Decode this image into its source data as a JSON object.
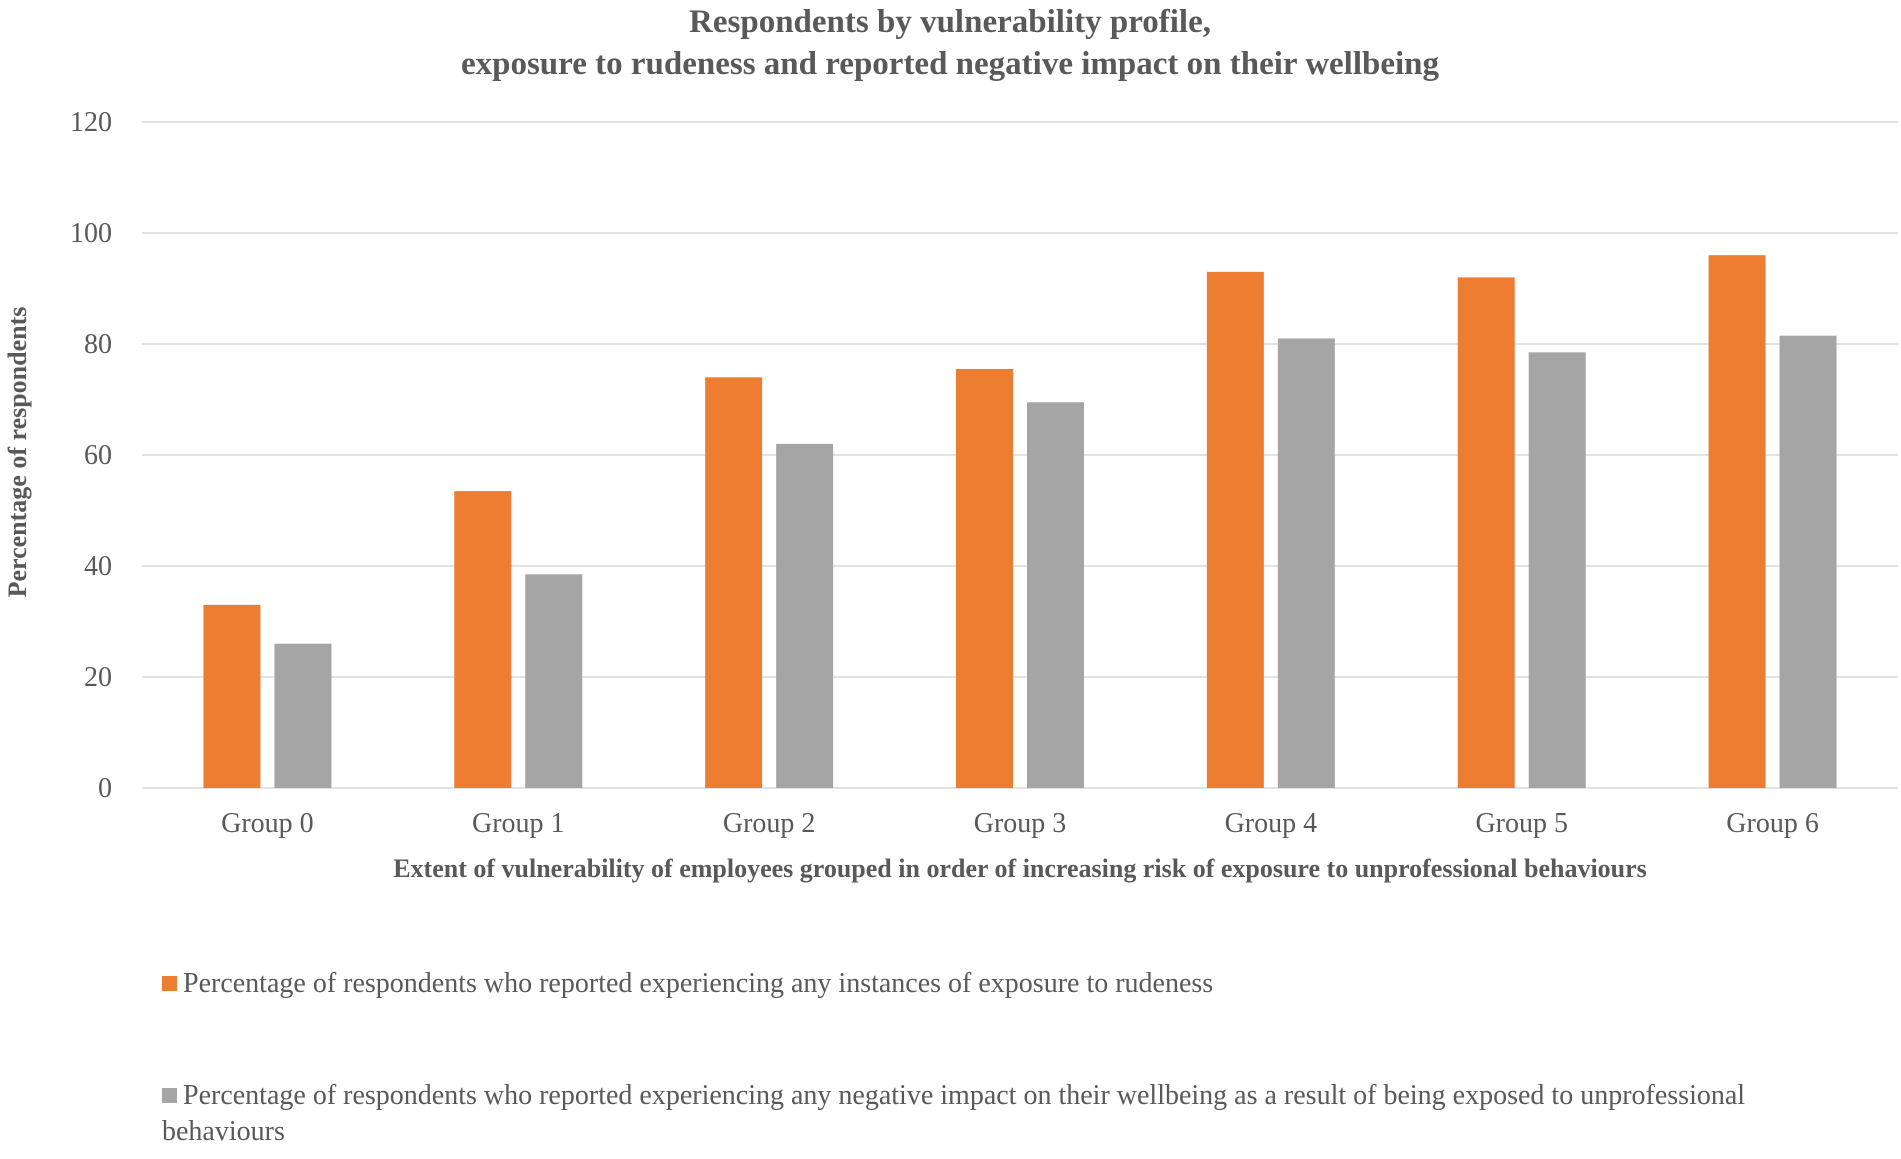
{
  "chart_data": {
    "type": "bar",
    "title_lines": [
      "Respondents by vulnerability profile,",
      "exposure to rudeness and reported negative impact on their wellbeing"
    ],
    "xlabel": "Extent of vulnerability of employees grouped in order of increasing risk of exposure to unprofessional behaviours",
    "ylabel": "Percentage of respondents",
    "ylim": [
      0,
      120
    ],
    "yticks": [
      0,
      20,
      40,
      60,
      80,
      100,
      120
    ],
    "grid": true,
    "legend_position": "bottom",
    "categories": [
      "Group 0",
      "Group 1",
      "Group 2",
      "Group 3",
      "Group 4",
      "Group 5",
      "Group 6"
    ],
    "series": [
      {
        "name": "Percentage of respondents who reported experiencing any instances of exposure to rudeness",
        "color": "#ED7D31",
        "values": [
          33,
          53.5,
          74,
          75.5,
          93,
          92,
          96
        ]
      },
      {
        "name": "Percentage of respondents who reported experiencing any negative impact on their wellbeing as a result of being exposed to unprofessional behaviours",
        "color": "#A5A5A5",
        "values": [
          26,
          38.5,
          62,
          69.5,
          81,
          78.5,
          81.5
        ]
      }
    ]
  }
}
